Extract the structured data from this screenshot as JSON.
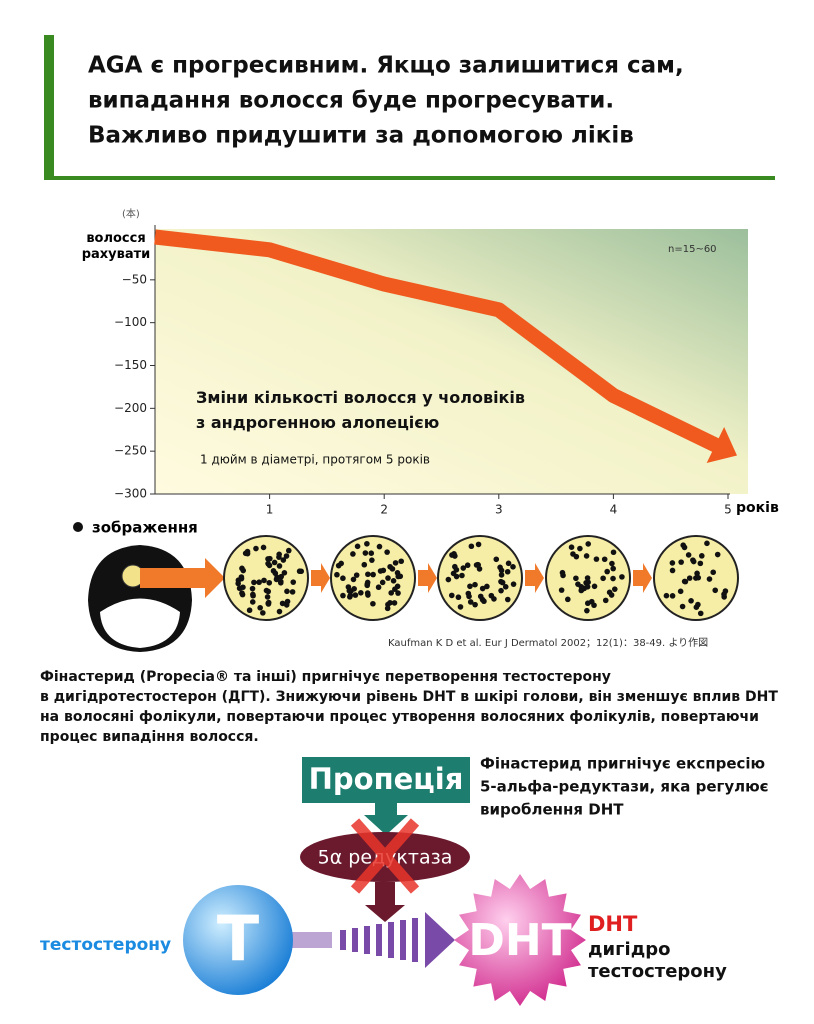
{
  "header": {
    "title_lines": [
      "AGA є прогресивним. Якщо залишитися сам,",
      "випадання волосся буде прогресувати.",
      "Важливо придушити за допомогою ліків"
    ]
  },
  "chart_data": {
    "type": "line",
    "title": "Зміни кількості волосся у чоловіків\nз андрогенною алопецією",
    "subtitle": "1 дюйм в діаметрі, протягом 5 років",
    "unit_label": "(本)",
    "y_label": "волосся рахувати",
    "x_label": "років",
    "annotation": "n=15~60",
    "x": [
      0,
      1,
      2,
      3,
      4,
      5
    ],
    "values": [
      0,
      -15,
      -55,
      -85,
      -185,
      -250
    ],
    "color": "#f05a1e",
    "xlim": [
      0,
      5
    ],
    "xticks": [
      1,
      2,
      3,
      4,
      5
    ],
    "ylim": [
      -300,
      0
    ],
    "yticks": [
      {
        "value": -50,
        "label": "−50"
      },
      {
        "value": -100,
        "label": "−100"
      },
      {
        "value": -150,
        "label": "−150"
      },
      {
        "value": -200,
        "label": "−200"
      },
      {
        "value": -250,
        "label": "−250"
      },
      {
        "value": -300,
        "label": "−300"
      }
    ]
  },
  "figure": {
    "image_label": "зображення",
    "citation": "Kaufman K D et al. Eur J Dermatol 2002；12(1)：38-49. より作図"
  },
  "description": {
    "lines": [
      "Фінастерид (Propecia® та інші) пригнічує перетворення тестостерону",
      "в дигідротестостерон (ДГТ). Знижуючи рівень DHT в шкірі голови, він зменшує вплив DHT",
      "на волосяні фолікули, повертаючи процес утворення волосяних фолікулів, повертаючи",
      "процес випадіння волосся."
    ]
  },
  "diagram": {
    "drug": "Пропеція",
    "enzyme": "5α редуктаза",
    "note_lines": [
      "Фінастерид пригнічує експресію",
      "5-альфа-редуктази, яка регулює",
      "вироблення DHT"
    ],
    "source_label": "тестостерону",
    "source_symbol": "T",
    "product_symbol": "DHT",
    "product_lines": [
      "DHT",
      "дигідро",
      "тестостерону"
    ]
  }
}
